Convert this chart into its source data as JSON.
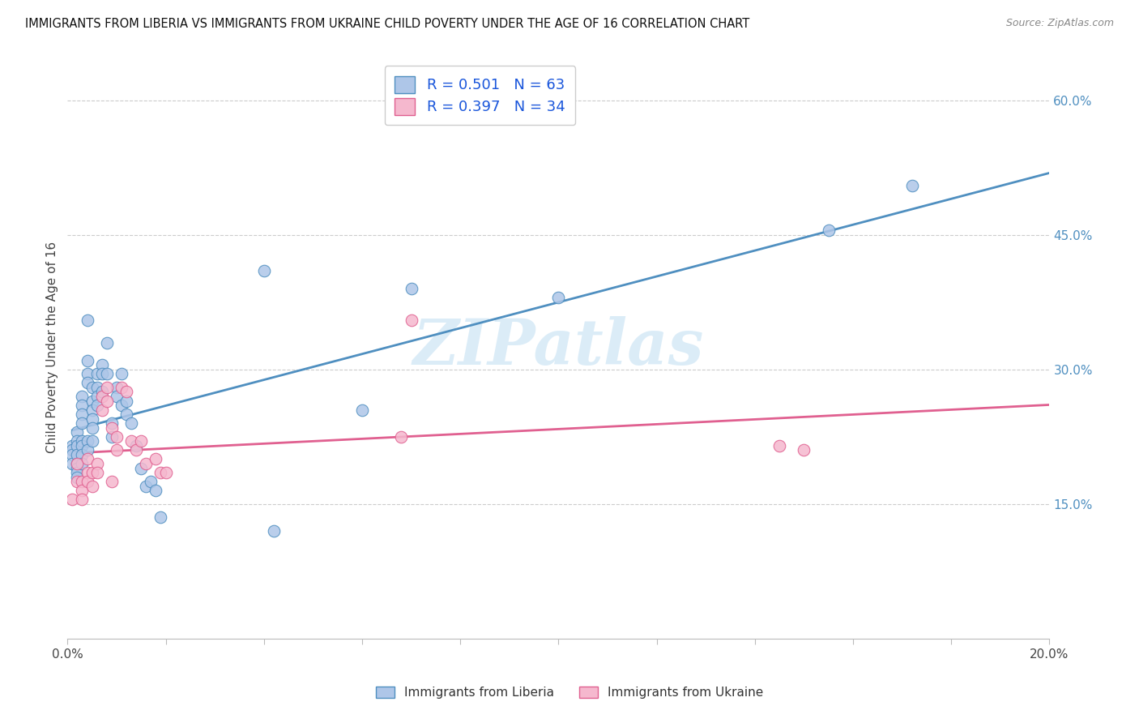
{
  "title": "IMMIGRANTS FROM LIBERIA VS IMMIGRANTS FROM UKRAINE CHILD POVERTY UNDER THE AGE OF 16 CORRELATION CHART",
  "source": "Source: ZipAtlas.com",
  "ylabel": "Child Poverty Under the Age of 16",
  "xlim": [
    0.0,
    0.2
  ],
  "ylim": [
    0.0,
    0.65
  ],
  "x_ticks": [
    0.0,
    0.02,
    0.04,
    0.06,
    0.08,
    0.1,
    0.12,
    0.14,
    0.16,
    0.18,
    0.2
  ],
  "y_ticks_right": [
    0.15,
    0.3,
    0.45,
    0.6
  ],
  "y_tick_labels_right": [
    "15.0%",
    "30.0%",
    "45.0%",
    "60.0%"
  ],
  "liberia_R": 0.501,
  "liberia_N": 63,
  "ukraine_R": 0.397,
  "ukraine_N": 34,
  "liberia_color": "#aec6e8",
  "ukraine_color": "#f5b8ce",
  "liberia_line_color": "#4f8fc0",
  "ukraine_line_color": "#e06090",
  "watermark_color": "#cde5f5",
  "liberia_x": [
    0.001,
    0.001,
    0.001,
    0.001,
    0.002,
    0.002,
    0.002,
    0.002,
    0.002,
    0.002,
    0.002,
    0.002,
    0.003,
    0.003,
    0.003,
    0.003,
    0.003,
    0.003,
    0.003,
    0.003,
    0.004,
    0.004,
    0.004,
    0.004,
    0.004,
    0.004,
    0.005,
    0.005,
    0.005,
    0.005,
    0.005,
    0.005,
    0.006,
    0.006,
    0.006,
    0.006,
    0.007,
    0.007,
    0.007,
    0.008,
    0.008,
    0.009,
    0.009,
    0.01,
    0.01,
    0.011,
    0.011,
    0.012,
    0.012,
    0.013,
    0.014,
    0.015,
    0.016,
    0.017,
    0.018,
    0.019,
    0.04,
    0.042,
    0.06,
    0.07,
    0.1,
    0.155,
    0.172
  ],
  "liberia_y": [
    0.215,
    0.21,
    0.205,
    0.195,
    0.23,
    0.22,
    0.215,
    0.205,
    0.195,
    0.19,
    0.185,
    0.18,
    0.27,
    0.26,
    0.25,
    0.24,
    0.22,
    0.215,
    0.205,
    0.195,
    0.355,
    0.31,
    0.295,
    0.285,
    0.22,
    0.21,
    0.28,
    0.265,
    0.255,
    0.245,
    0.235,
    0.22,
    0.295,
    0.28,
    0.27,
    0.26,
    0.305,
    0.295,
    0.275,
    0.33,
    0.295,
    0.24,
    0.225,
    0.28,
    0.27,
    0.295,
    0.26,
    0.265,
    0.25,
    0.24,
    0.215,
    0.19,
    0.17,
    0.175,
    0.165,
    0.135,
    0.41,
    0.12,
    0.255,
    0.39,
    0.38,
    0.455,
    0.505
  ],
  "ukraine_x": [
    0.001,
    0.002,
    0.002,
    0.003,
    0.003,
    0.003,
    0.004,
    0.004,
    0.004,
    0.005,
    0.005,
    0.006,
    0.006,
    0.007,
    0.007,
    0.008,
    0.008,
    0.009,
    0.009,
    0.01,
    0.01,
    0.011,
    0.012,
    0.013,
    0.014,
    0.015,
    0.016,
    0.018,
    0.019,
    0.02,
    0.068,
    0.07,
    0.145,
    0.15
  ],
  "ukraine_y": [
    0.155,
    0.195,
    0.175,
    0.175,
    0.165,
    0.155,
    0.2,
    0.185,
    0.175,
    0.185,
    0.17,
    0.195,
    0.185,
    0.27,
    0.255,
    0.28,
    0.265,
    0.235,
    0.175,
    0.225,
    0.21,
    0.28,
    0.275,
    0.22,
    0.21,
    0.22,
    0.195,
    0.2,
    0.185,
    0.185,
    0.225,
    0.355,
    0.215,
    0.21
  ]
}
